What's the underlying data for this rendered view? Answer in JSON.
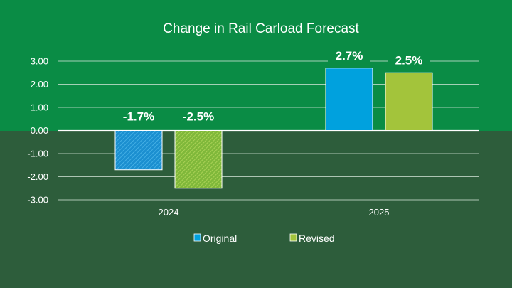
{
  "chart_data": {
    "type": "bar",
    "title": "Change in Rail Carload Forecast",
    "categories": [
      "2024",
      "2025"
    ],
    "series": [
      {
        "name": "Original",
        "values": [
          -1.7,
          2.7
        ],
        "labels": [
          "-1.7%",
          "2.7%"
        ],
        "color": "#00a1de"
      },
      {
        "name": "Revised",
        "values": [
          -2.5,
          2.5
        ],
        "labels": [
          "-2.5%",
          "2.5%"
        ],
        "color": "#a3c43b"
      }
    ],
    "yticks": [
      "3.00",
      "2.00",
      "1.00",
      "0.00",
      "-1.00",
      "-2.00",
      "-3.00"
    ],
    "ylim": [
      -3,
      3
    ],
    "grid": true,
    "legend_position": "bottom"
  }
}
